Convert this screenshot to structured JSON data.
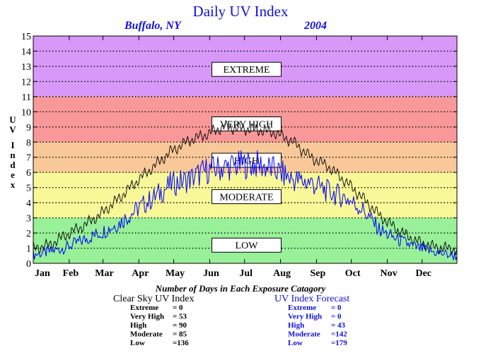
{
  "chart_data": {
    "type": "line",
    "title": "Daily UV Index",
    "location": "Buffalo, NY",
    "year": "2004",
    "ylabel": "UV Index",
    "ylim": [
      0,
      15
    ],
    "yticks": [
      "0",
      "1",
      "2",
      "3",
      "4",
      "5",
      "6",
      "7",
      "8",
      "9",
      "10",
      "11",
      "12",
      "13",
      "14",
      "15"
    ],
    "months": [
      "Jan",
      "Feb",
      "Mar",
      "Apr",
      "May",
      "Jun",
      "Jul",
      "Aug",
      "Sep",
      "Oct",
      "Nov",
      "Dec"
    ],
    "zones": [
      {
        "label": "LOW",
        "from": 0,
        "to": 3,
        "color": "#98f098"
      },
      {
        "label": "MODERATE",
        "from": 3,
        "to": 6,
        "color": "#f8f898"
      },
      {
        "label": "HIGH",
        "from": 6,
        "to": 8,
        "color": "#f8c898"
      },
      {
        "label": "VERY HIGH",
        "from": 8,
        "to": 11,
        "color": "#f89898"
      },
      {
        "label": "EXTREME",
        "from": 11,
        "to": 15,
        "color": "#d898f8"
      }
    ],
    "series": [
      {
        "name": "Clear Sky UV Index",
        "color": "#000000",
        "x": [
          1,
          15,
          30,
          45,
          60,
          75,
          90,
          105,
          120,
          135,
          150,
          165,
          180,
          195,
          210,
          225,
          240,
          255,
          270,
          285,
          300,
          315,
          330,
          345,
          366
        ],
        "y": [
          1.0,
          1.2,
          1.9,
          2.5,
          3.3,
          4.3,
          5.4,
          6.4,
          7.4,
          8.1,
          8.5,
          9.0,
          8.9,
          8.8,
          8.6,
          8.0,
          7.0,
          6.4,
          5.4,
          4.3,
          3.1,
          2.2,
          1.5,
          1.1,
          0.9
        ]
      },
      {
        "name": "UV Index Forecast",
        "color": "#0000ff",
        "x": [
          1,
          15,
          30,
          45,
          60,
          75,
          90,
          105,
          120,
          135,
          150,
          165,
          180,
          195,
          210,
          225,
          240,
          255,
          270,
          285,
          300,
          315,
          330,
          345,
          366
        ],
        "y": [
          0.6,
          0.8,
          1.1,
          1.6,
          2.1,
          2.7,
          3.6,
          4.4,
          5.3,
          5.6,
          6.2,
          6.4,
          6.6,
          6.6,
          6.2,
          5.6,
          5.4,
          4.8,
          4.4,
          3.6,
          2.2,
          1.6,
          1.1,
          0.8,
          0.5
        ]
      }
    ]
  },
  "summary": {
    "heading": "Number of Days in Each Exposure Catagory",
    "clear": {
      "title": "Clear Sky UV Index",
      "rows": [
        {
          "label": "Extreme",
          "value": "=    0"
        },
        {
          "label": "Very High",
          "value": "=  53"
        },
        {
          "label": "High",
          "value": "=  90"
        },
        {
          "label": "Moderate",
          "value": "=  85"
        },
        {
          "label": "Low",
          "value": "=136"
        }
      ]
    },
    "forecast": {
      "title": "UV Index Forecast",
      "rows": [
        {
          "label": "Extreme",
          "value": "=    0"
        },
        {
          "label": "Very High",
          "value": "=    0"
        },
        {
          "label": "High",
          "value": "=  43"
        },
        {
          "label": "Moderate",
          "value": "=142"
        },
        {
          "label": "Low",
          "value": "=179"
        }
      ]
    }
  }
}
